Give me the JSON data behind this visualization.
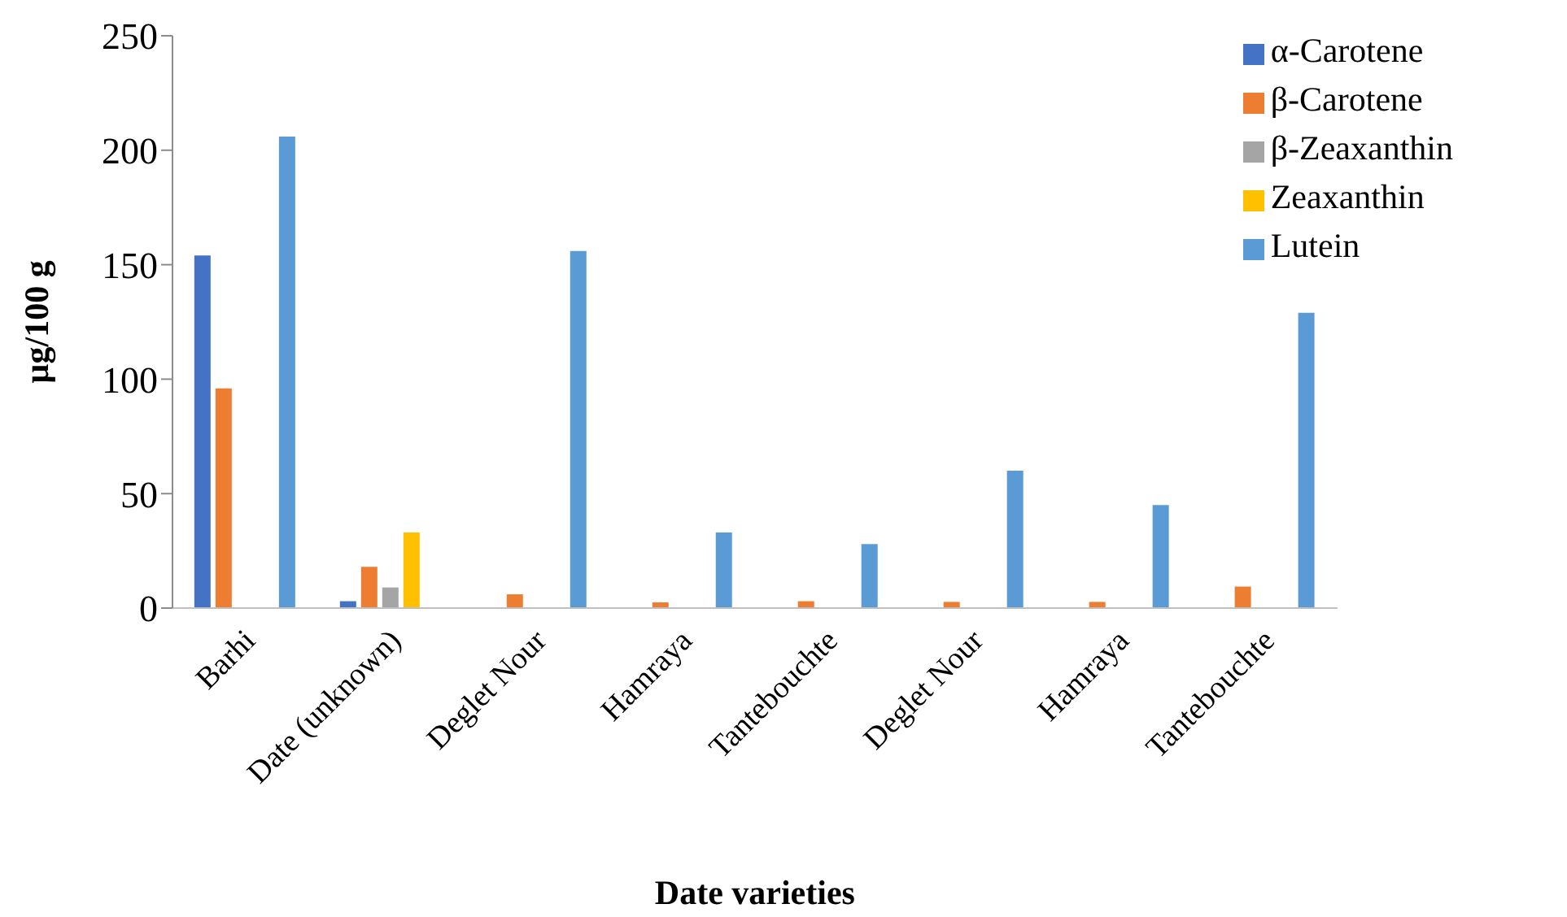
{
  "chart_data": {
    "type": "bar",
    "xlabel": "Date varieties",
    "ylabel": "µg/100 g",
    "categories": [
      "Barhi",
      "Date (unknown)",
      "Deglet Nour",
      "Hamraya",
      "Tantebouchte",
      "Deglet Nour",
      "Hamraya",
      "Tantebouchte"
    ],
    "series": [
      {
        "name": "α-Carotene",
        "color": "#4472c4",
        "values": [
          154,
          3,
          null,
          null,
          null,
          null,
          null,
          null
        ]
      },
      {
        "name": "β-Carotene",
        "color": "#ed7d31",
        "values": [
          96,
          18,
          6,
          2.5,
          3,
          2.7,
          2.7,
          9.4
        ]
      },
      {
        "name": "β-Zeaxanthin",
        "color": "#a5a5a5",
        "values": [
          null,
          9,
          null,
          null,
          null,
          null,
          null,
          null
        ]
      },
      {
        "name": "Zeaxanthin",
        "color": "#ffc000",
        "values": [
          null,
          33,
          null,
          null,
          null,
          null,
          null,
          null
        ]
      },
      {
        "name": "Lutein",
        "color": "#5b9bd5",
        "values": [
          206,
          null,
          156,
          33,
          28,
          60,
          45,
          129
        ]
      }
    ],
    "ylim": [
      0,
      250
    ],
    "yticks": [
      0,
      50,
      100,
      150,
      200,
      250
    ],
    "grid": false,
    "legend": "top right"
  }
}
